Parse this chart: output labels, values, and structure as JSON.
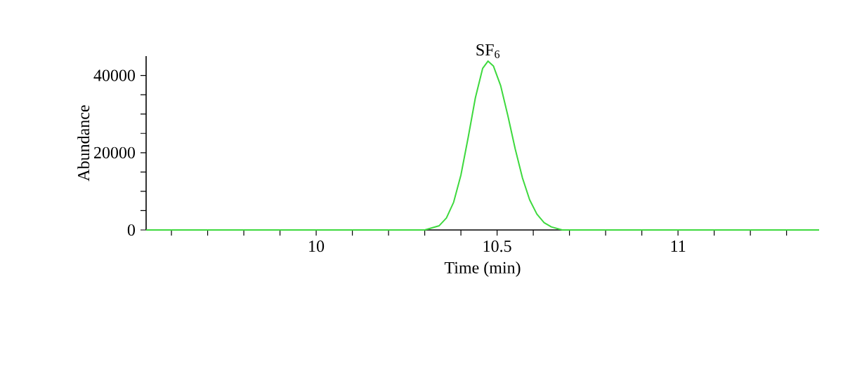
{
  "chart_data": {
    "type": "line",
    "xlabel": "Time (min)",
    "ylabel": "Abundance",
    "annotations": [
      {
        "text": "SF$_{6}$",
        "x": 10.475,
        "y": 43700
      }
    ],
    "series": [
      {
        "color": "#3ed93e",
        "x": [
          9.53,
          10.3,
          10.34,
          10.36,
          10.38,
          10.4,
          10.42,
          10.44,
          10.46,
          10.475,
          10.49,
          10.51,
          10.53,
          10.55,
          10.57,
          10.59,
          10.61,
          10.63,
          10.65,
          10.68,
          11.39
        ],
        "values": [
          0,
          0,
          1100,
          3100,
          7200,
          14200,
          23900,
          34200,
          41800,
          43700,
          42400,
          37300,
          29500,
          21000,
          13500,
          7800,
          4100,
          1900,
          800,
          0,
          0
        ]
      }
    ],
    "xlim": [
      9.53,
      11.39
    ],
    "ylim": [
      0,
      45000
    ],
    "xticks": [
      {
        "value": 9.6,
        "label": null
      },
      {
        "value": 9.7,
        "label": null
      },
      {
        "value": 9.8,
        "label": null
      },
      {
        "value": 9.9,
        "label": null
      },
      10,
      {
        "value": 10.1,
        "label": null
      },
      {
        "value": 10.2,
        "label": null
      },
      {
        "value": 10.3,
        "label": null
      },
      {
        "value": 10.4,
        "label": null
      },
      10.5,
      {
        "value": 10.6,
        "label": null
      },
      {
        "value": 10.7,
        "label": null
      },
      {
        "value": 10.8,
        "label": null
      },
      {
        "value": 10.9,
        "label": null
      },
      11,
      {
        "value": 11.1,
        "label": null
      },
      {
        "value": 11.2,
        "label": null
      },
      {
        "value": 11.3,
        "label": null
      }
    ],
    "yticks": [
      0,
      {
        "value": 5000,
        "label": null
      },
      {
        "value": 10000,
        "label": null
      },
      {
        "value": 15000,
        "label": null
      },
      20000,
      {
        "value": 25000,
        "label": null
      },
      {
        "value": 30000,
        "label": null
      },
      {
        "value": 35000,
        "label": null
      },
      40000
    ],
    "grid": false,
    "marker": "none",
    "line_style": "solid"
  }
}
